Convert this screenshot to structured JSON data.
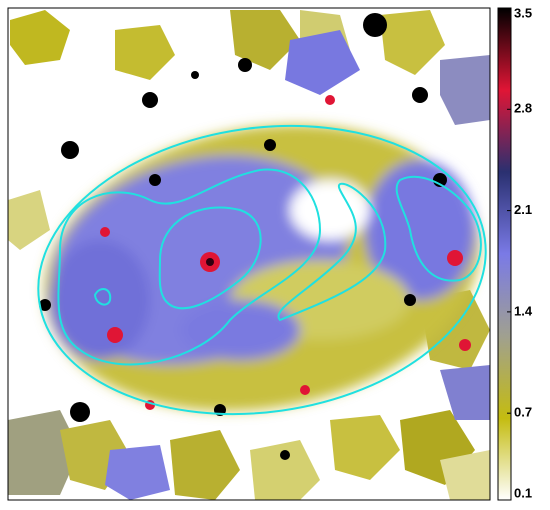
{
  "colorbar": {
    "lim": [
      0.1,
      3.5
    ],
    "ticks": [
      0.1,
      0.7,
      1.4,
      2.1,
      2.8,
      3.5
    ],
    "colormap": [
      "#ffffff",
      "#c4bc10",
      "#a0a090",
      "#7a7ae6",
      "#2a3070",
      "#e01535",
      "#000000"
    ]
  }
}
